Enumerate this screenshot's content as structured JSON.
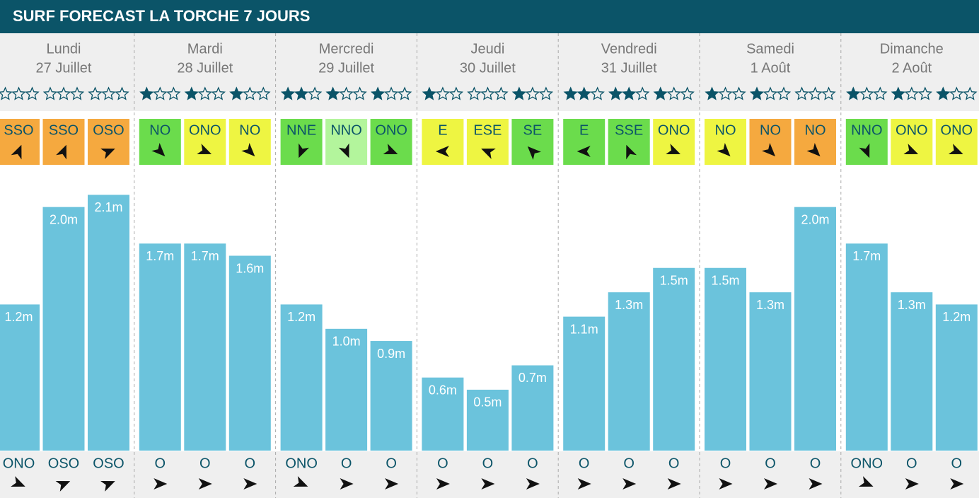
{
  "title": "SURF FORECAST LA TORCHE 7 JOURS",
  "ylim": [
    0,
    2.12
  ],
  "days": [
    {
      "name": "Lundi",
      "date": "27 Juillet",
      "slots": [
        {
          "stars": 0,
          "wind": "SSO",
          "wind_color": "#f5a93f",
          "height": 1.2,
          "height_label": "1.2m",
          "swell": "ONO"
        },
        {
          "stars": 0,
          "wind": "SSO",
          "wind_color": "#f5a93f",
          "height": 2.0,
          "height_label": "2.0m",
          "swell": "OSO"
        },
        {
          "stars": 0,
          "wind": "OSO",
          "wind_color": "#f5a93f",
          "height": 2.1,
          "height_label": "2.1m",
          "swell": "OSO"
        }
      ]
    },
    {
      "name": "Mardi",
      "date": "28 Juillet",
      "slots": [
        {
          "stars": 1,
          "wind": "NO",
          "wind_color": "#6bdc4c",
          "height": 1.7,
          "height_label": "1.7m",
          "swell": "O"
        },
        {
          "stars": 1,
          "wind": "ONO",
          "wind_color": "#eef542",
          "height": 1.7,
          "height_label": "1.7m",
          "swell": "O"
        },
        {
          "stars": 1,
          "wind": "NO",
          "wind_color": "#eef542",
          "height": 1.6,
          "height_label": "1.6m",
          "swell": "O"
        }
      ]
    },
    {
      "name": "Mercredi",
      "date": "29 Juillet",
      "slots": [
        {
          "stars": 2,
          "wind": "NNE",
          "wind_color": "#6bdc4c",
          "height": 1.2,
          "height_label": "1.2m",
          "swell": "ONO"
        },
        {
          "stars": 1,
          "wind": "NNO",
          "wind_color": "#b3f59c",
          "height": 1.0,
          "height_label": "1.0m",
          "swell": "O"
        },
        {
          "stars": 1,
          "wind": "ONO",
          "wind_color": "#6bdc4c",
          "height": 0.9,
          "height_label": "0.9m",
          "swell": "O"
        }
      ]
    },
    {
      "name": "Jeudi",
      "date": "30 Juillet",
      "slots": [
        {
          "stars": 1,
          "wind": "E",
          "wind_color": "#eef542",
          "height": 0.6,
          "height_label": "0.6m",
          "swell": "O"
        },
        {
          "stars": 0,
          "wind": "ESE",
          "wind_color": "#eef542",
          "height": 0.5,
          "height_label": "0.5m",
          "swell": "O"
        },
        {
          "stars": 1,
          "wind": "SE",
          "wind_color": "#6bdc4c",
          "height": 0.7,
          "height_label": "0.7m",
          "swell": "O"
        }
      ]
    },
    {
      "name": "Vendredi",
      "date": "31 Juillet",
      "slots": [
        {
          "stars": 2,
          "wind": "E",
          "wind_color": "#6bdc4c",
          "height": 1.1,
          "height_label": "1.1m",
          "swell": "O"
        },
        {
          "stars": 2,
          "wind": "SSE",
          "wind_color": "#6bdc4c",
          "height": 1.3,
          "height_label": "1.3m",
          "swell": "O"
        },
        {
          "stars": 1,
          "wind": "ONO",
          "wind_color": "#eef542",
          "height": 1.5,
          "height_label": "1.5m",
          "swell": "O"
        }
      ]
    },
    {
      "name": "Samedi",
      "date": "1 Août",
      "slots": [
        {
          "stars": 1,
          "wind": "NO",
          "wind_color": "#eef542",
          "height": 1.5,
          "height_label": "1.5m",
          "swell": "O"
        },
        {
          "stars": 1,
          "wind": "NO",
          "wind_color": "#f5a93f",
          "height": 1.3,
          "height_label": "1.3m",
          "swell": "O"
        },
        {
          "stars": 0,
          "wind": "NO",
          "wind_color": "#f5a93f",
          "height": 2.0,
          "height_label": "2.0m",
          "swell": "O"
        }
      ]
    },
    {
      "name": "Dimanche",
      "date": "2 Août",
      "slots": [
        {
          "stars": 1,
          "wind": "NNO",
          "wind_color": "#6bdc4c",
          "height": 1.7,
          "height_label": "1.7m",
          "swell": "ONO"
        },
        {
          "stars": 1,
          "wind": "ONO",
          "wind_color": "#eef542",
          "height": 1.3,
          "height_label": "1.3m",
          "swell": "O"
        },
        {
          "stars": 1,
          "wind": "ONO",
          "wind_color": "#eef542",
          "height": 1.2,
          "height_label": "1.2m",
          "swell": "O"
        }
      ]
    }
  ]
}
